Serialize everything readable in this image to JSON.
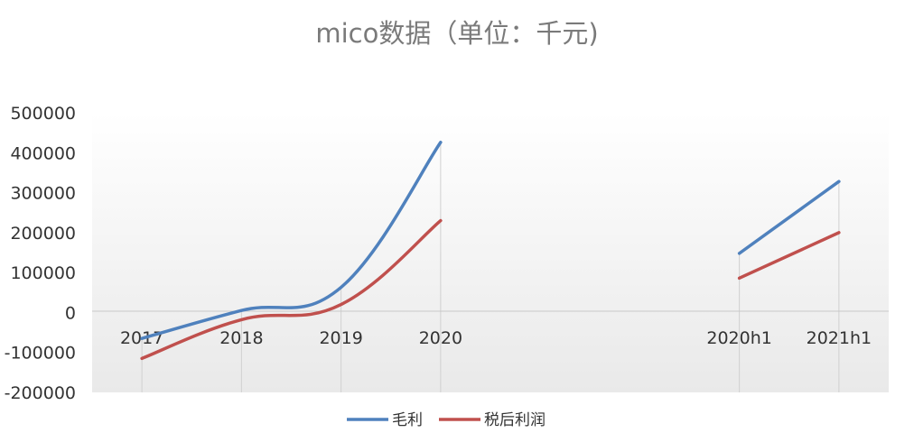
{
  "chart_data": {
    "type": "line",
    "title": "mico数据（单位：千元)",
    "categories": [
      "2017",
      "2018",
      "2019",
      "2020",
      "",
      "",
      "2020h1",
      "2021h1"
    ],
    "ylim": [
      -200000,
      500000
    ],
    "yticks": [
      "500000",
      "400000",
      "300000",
      "200000",
      "100000",
      "0",
      "-100000",
      "-200000"
    ],
    "grid": false,
    "legend_position": "bottom",
    "series": [
      {
        "name": "毛利",
        "color": "#4f81bd",
        "values": [
          -65000,
          5000,
          63000,
          426000,
          null,
          null,
          148000,
          328000
        ]
      },
      {
        "name": "税后利润",
        "color": "#c0504d",
        "values": [
          -115000,
          -18000,
          20000,
          230000,
          null,
          null,
          86000,
          200000
        ]
      }
    ]
  }
}
